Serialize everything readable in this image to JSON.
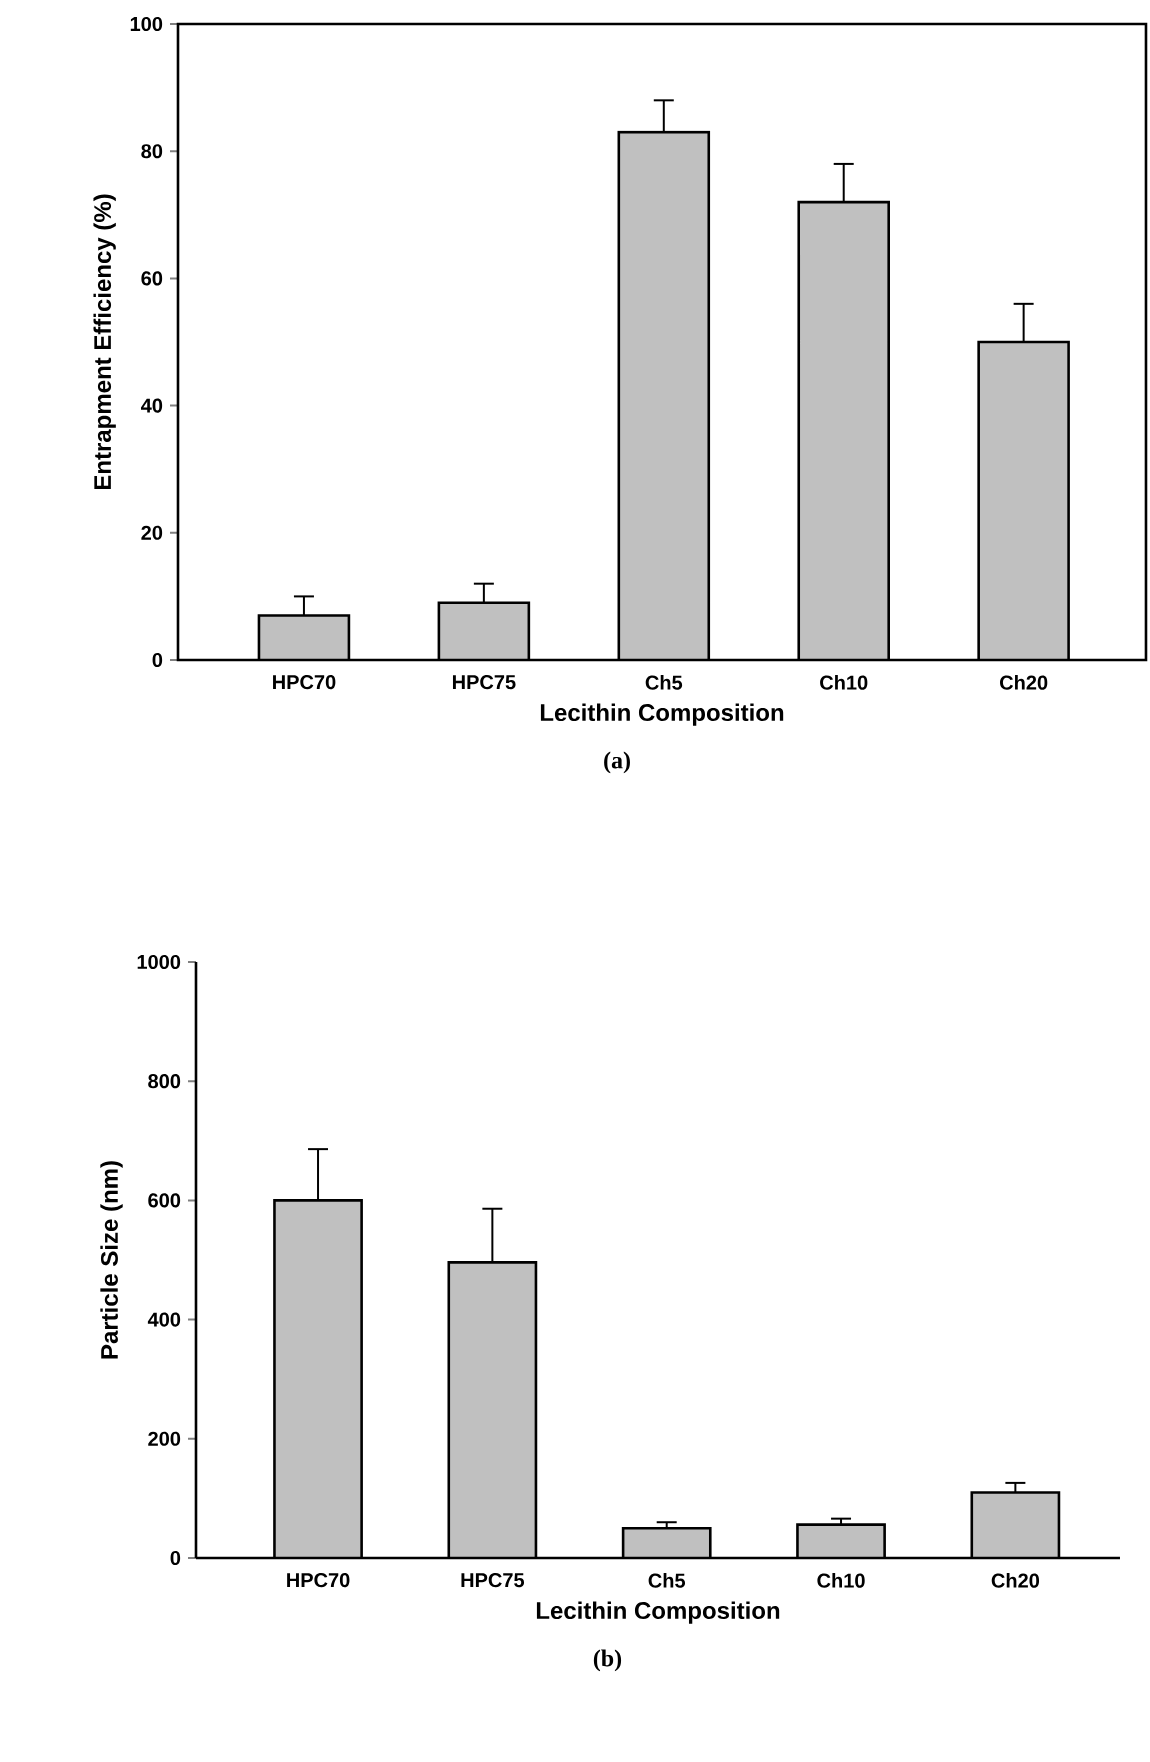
{
  "chart_data": [
    {
      "type": "bar",
      "categories": [
        "HPC70",
        "HPC75",
        "Ch5",
        "Ch10",
        "Ch20"
      ],
      "values": [
        7,
        9,
        83,
        72,
        50
      ],
      "color": "#c0c0c0",
      "errors": [
        [
          7,
          10
        ],
        [
          9,
          12
        ],
        [
          83,
          88
        ],
        [
          72,
          78
        ],
        [
          50,
          56
        ]
      ],
      "ylim": [
        0,
        100
      ],
      "yticks": [
        0,
        20,
        40,
        60,
        80,
        100
      ],
      "xlabel": "Lecithin Composition",
      "ylabel": "Entrapment Efficiency (%)",
      "annotations": [
        "(a)"
      ]
    },
    {
      "type": "bar",
      "categories": [
        "HPC70",
        "HPC75",
        "Ch5",
        "Ch10",
        "Ch20"
      ],
      "values": [
        600,
        496,
        50,
        56,
        110
      ],
      "color": "#c0c0c0",
      "errors": [
        [
          600,
          686
        ],
        [
          496,
          586
        ],
        [
          50,
          60
        ],
        [
          56,
          66
        ],
        [
          110,
          126
        ]
      ],
      "ylim": [
        0,
        1000
      ],
      "yticks": [
        0,
        200,
        400,
        600,
        800,
        1000
      ],
      "xlabel": "Lecithin Composition",
      "ylabel": "Particle Size (nm)",
      "annotations": [
        "(b)"
      ]
    }
  ]
}
